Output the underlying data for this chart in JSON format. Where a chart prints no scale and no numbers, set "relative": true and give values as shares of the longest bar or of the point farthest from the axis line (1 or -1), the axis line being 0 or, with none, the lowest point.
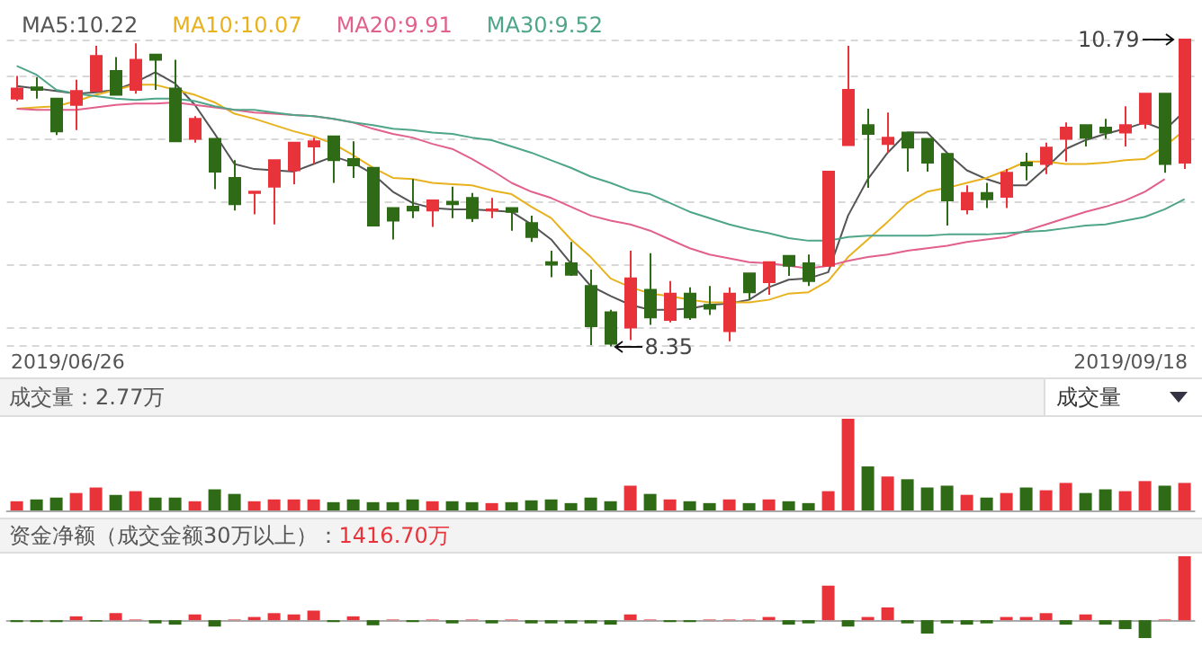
{
  "chart_data": [
    {
      "type": "candlestick",
      "categories": [
        null,
        null,
        null,
        null,
        null,
        null,
        null,
        null,
        null,
        null,
        null,
        null,
        null,
        null,
        null,
        null,
        null,
        null,
        null,
        null,
        null,
        null,
        null,
        null,
        null,
        null,
        null,
        null,
        null,
        null,
        null,
        null,
        null,
        null,
        null,
        null,
        null,
        null,
        null,
        null,
        null,
        null,
        null,
        null,
        null,
        null,
        null,
        null,
        null,
        null,
        null,
        null,
        null,
        null,
        null,
        null,
        null,
        null,
        null,
        null
      ],
      "ohlc": [
        [
          10.32,
          10.5,
          10.3,
          10.4
        ],
        [
          10.41,
          10.49,
          10.32,
          10.39
        ],
        [
          10.32,
          10.32,
          10.03,
          10.06
        ],
        [
          10.27,
          10.47,
          10.07,
          10.38
        ],
        [
          10.38,
          10.74,
          10.38,
          10.66
        ],
        [
          10.54,
          10.65,
          10.35,
          10.35
        ],
        [
          10.39,
          10.76,
          10.36,
          10.63
        ],
        [
          10.67,
          10.67,
          10.39,
          10.63
        ],
        [
          10.4,
          10.63,
          9.98,
          9.98
        ],
        [
          10.0,
          10.18,
          9.97,
          10.16
        ],
        [
          10.0,
          10.0,
          9.6,
          9.74
        ],
        [
          9.69,
          9.83,
          9.43,
          9.48
        ],
        [
          9.57,
          9.58,
          9.4,
          9.58
        ],
        [
          9.62,
          9.83,
          9.32,
          9.83
        ],
        [
          9.75,
          9.97,
          9.64,
          9.97
        ],
        [
          9.94,
          10.01,
          9.8,
          9.98
        ],
        [
          10.02,
          10.02,
          9.65,
          9.83
        ],
        [
          9.84,
          9.98,
          9.69,
          9.79
        ],
        [
          9.77,
          9.77,
          9.31,
          9.31
        ],
        [
          9.45,
          9.45,
          9.2,
          9.35
        ],
        [
          9.46,
          9.68,
          9.37,
          9.43
        ],
        [
          9.43,
          9.51,
          9.3,
          9.51
        ],
        [
          9.5,
          9.62,
          9.37,
          9.48
        ],
        [
          9.53,
          9.57,
          9.34,
          9.37
        ],
        [
          9.43,
          9.53,
          9.37,
          9.44
        ],
        [
          9.45,
          9.45,
          9.27,
          9.42
        ],
        [
          9.33,
          9.39,
          9.18,
          9.22
        ],
        [
          9.02,
          9.11,
          8.9,
          9.0
        ],
        [
          9.01,
          9.18,
          8.91,
          8.92
        ],
        [
          8.83,
          8.96,
          8.36,
          8.51
        ],
        [
          8.62,
          8.64,
          8.35,
          8.37
        ],
        [
          8.5,
          9.11,
          8.4,
          8.89
        ],
        [
          8.8,
          9.09,
          8.52,
          8.58
        ],
        [
          8.56,
          8.87,
          8.54,
          8.77
        ],
        [
          8.77,
          8.82,
          8.56,
          8.58
        ],
        [
          8.68,
          8.83,
          8.6,
          8.65
        ],
        [
          8.47,
          8.82,
          8.39,
          8.77
        ],
        [
          8.93,
          8.93,
          8.72,
          8.78
        ],
        [
          8.86,
          9.02,
          8.76,
          9.02
        ],
        [
          9.07,
          9.07,
          8.91,
          8.99
        ],
        [
          9.01,
          9.08,
          8.83,
          8.87
        ],
        [
          8.99,
          9.74,
          8.99,
          9.74
        ],
        [
          9.95,
          10.74,
          9.95,
          10.39
        ],
        [
          10.11,
          10.24,
          9.61,
          10.04
        ],
        [
          9.96,
          10.21,
          9.89,
          10.01
        ],
        [
          10.05,
          10.05,
          9.74,
          9.93
        ],
        [
          10.0,
          10.0,
          9.74,
          9.81
        ],
        [
          9.88,
          9.88,
          9.31,
          9.51
        ],
        [
          9.44,
          9.63,
          9.4,
          9.57
        ],
        [
          9.57,
          9.65,
          9.45,
          9.52
        ],
        [
          9.54,
          9.76,
          9.45,
          9.73
        ],
        [
          9.81,
          9.89,
          9.67,
          9.79
        ],
        [
          9.8,
          9.97,
          9.72,
          9.93
        ],
        [
          10.0,
          10.13,
          9.82,
          10.09
        ],
        [
          10.11,
          10.11,
          9.94,
          10.01
        ],
        [
          10.09,
          10.16,
          10.0,
          10.05
        ],
        [
          10.05,
          10.26,
          9.94,
          10.11
        ],
        [
          10.12,
          10.36,
          10.08,
          10.36
        ],
        [
          10.36,
          10.36,
          9.73,
          9.8
        ],
        [
          9.81,
          10.79,
          9.76,
          10.79
        ]
      ],
      "colors": [
        "#e8333a",
        "#2f6b17",
        "#2f6b17",
        "#e8333a",
        "#e8333a",
        "#2f6b17",
        "#e8333a",
        "#2f6b17",
        "#2f6b17",
        "#e8333a",
        "#2f6b17",
        "#2f6b17",
        "#e8333a",
        "#e8333a",
        "#e8333a",
        "#e8333a",
        "#2f6b17",
        "#2f6b17",
        "#2f6b17",
        "#2f6b17",
        "#2f6b17",
        "#e8333a",
        "#2f6b17",
        "#2f6b17",
        "#e8333a",
        "#2f6b17",
        "#2f6b17",
        "#2f6b17",
        "#2f6b17",
        "#2f6b17",
        "#2f6b17",
        "#e8333a",
        "#2f6b17",
        "#e8333a",
        "#2f6b17",
        "#2f6b17",
        "#e8333a",
        "#2f6b17",
        "#e8333a",
        "#2f6b17",
        "#2f6b17",
        "#e8333a",
        "#e8333a",
        "#2f6b17",
        "#e8333a",
        "#2f6b17",
        "#2f6b17",
        "#2f6b17",
        "#e8333a",
        "#2f6b17",
        "#e8333a",
        "#2f6b17",
        "#e8333a",
        "#e8333a",
        "#2f6b17",
        "#2f6b17",
        "#e8333a",
        "#e8333a",
        "#2f6b17",
        "#e8333a"
      ],
      "series": [
        {
          "type": "line",
          "name": "MA5:10.22",
          "color": "#555555",
          "values": [
            10.42,
            10.4,
            10.38,
            10.36,
            10.37,
            10.39,
            10.45,
            10.53,
            10.44,
            10.27,
            10.04,
            9.8,
            9.76,
            9.75,
            9.74,
            9.8,
            9.86,
            9.81,
            9.72,
            9.58,
            9.49,
            9.45,
            9.44,
            9.44,
            9.43,
            9.42,
            9.32,
            9.2,
            9.01,
            8.83,
            8.75,
            8.68,
            8.64,
            8.64,
            8.65,
            8.68,
            8.69,
            8.72,
            8.82,
            8.88,
            8.89,
            8.94,
            9.39,
            9.68,
            9.89,
            10.05,
            10.05,
            9.89,
            9.75,
            9.68,
            9.63,
            9.63,
            9.77,
            9.92,
            9.99,
            10.04,
            10.08,
            10.13,
            10.07,
            10.22
          ]
        },
        {
          "type": "line",
          "name": "MA10:10.07",
          "color": "#e8b21e",
          "values": [
            10.24,
            10.25,
            10.26,
            10.3,
            10.35,
            10.39,
            10.43,
            10.43,
            10.39,
            10.35,
            10.29,
            10.2,
            10.16,
            10.11,
            10.06,
            10.02,
            9.96,
            9.87,
            9.77,
            9.69,
            9.68,
            9.65,
            9.64,
            9.63,
            9.59,
            9.56,
            9.46,
            9.37,
            9.2,
            9.06,
            8.89,
            8.82,
            8.77,
            8.75,
            8.72,
            8.7,
            8.7,
            8.7,
            8.72,
            8.77,
            8.78,
            8.87,
            9.06,
            9.2,
            9.34,
            9.49,
            9.58,
            9.61,
            9.65,
            9.69,
            9.75,
            9.82,
            9.82,
            9.8,
            9.8,
            9.81,
            9.83,
            9.84,
            9.94,
            10.07
          ]
        },
        {
          "type": "line",
          "name": "MA20:9.91",
          "color": "#e2608c",
          "values": [
            10.24,
            10.23,
            10.23,
            10.23,
            10.25,
            10.27,
            10.28,
            10.28,
            10.29,
            10.27,
            10.25,
            10.23,
            10.21,
            10.2,
            10.19,
            10.18,
            10.16,
            10.13,
            10.08,
            10.04,
            10.01,
            9.96,
            9.92,
            9.84,
            9.75,
            9.65,
            9.58,
            9.53,
            9.46,
            9.39,
            9.35,
            9.32,
            9.27,
            9.2,
            9.13,
            9.08,
            9.05,
            9.02,
            9.01,
            8.99,
            8.97,
            8.99,
            9.03,
            9.06,
            9.08,
            9.11,
            9.13,
            9.15,
            9.18,
            9.2,
            9.22,
            9.27,
            9.32,
            9.37,
            9.42,
            9.46,
            9.51,
            9.58,
            9.68,
            null
          ]
        },
        {
          "type": "line",
          "name": "MA30:9.52",
          "color": "#4fa58a",
          "values": [
            10.58,
            10.51,
            10.39,
            10.36,
            10.34,
            10.32,
            10.31,
            10.32,
            10.32,
            10.3,
            10.26,
            10.23,
            10.23,
            10.21,
            10.19,
            10.18,
            10.16,
            10.13,
            10.11,
            10.08,
            10.07,
            10.05,
            10.04,
            10.01,
            9.99,
            9.94,
            9.89,
            9.83,
            9.77,
            9.7,
            9.65,
            9.59,
            9.56,
            9.49,
            9.42,
            9.37,
            9.32,
            9.28,
            9.25,
            9.21,
            9.19,
            9.19,
            9.22,
            9.23,
            9.23,
            9.23,
            9.23,
            9.24,
            9.24,
            9.24,
            9.25,
            9.26,
            9.27,
            9.29,
            9.31,
            9.32,
            9.35,
            9.38,
            9.44,
            9.52
          ]
        }
      ],
      "grid": "y",
      "tick_labels": false,
      "legend": "top left",
      "marker": "none",
      "line_style": "solid",
      "annotations": [
        "10.79",
        "8.35",
        "2019/06/26",
        "2019/09/18"
      ]
    },
    {
      "type": "bar",
      "title": "成交量：2.77万",
      "annotations": [
        "成交量"
      ],
      "relative": true,
      "categories": [
        null,
        null,
        null,
        null,
        null,
        null,
        null,
        null,
        null,
        null,
        null,
        null,
        null,
        null,
        null,
        null,
        null,
        null,
        null,
        null,
        null,
        null,
        null,
        null,
        null,
        null,
        null,
        null,
        null,
        null,
        null,
        null,
        null,
        null,
        null,
        null,
        null,
        null,
        null,
        null,
        null,
        null,
        null,
        null,
        null,
        null,
        null,
        null,
        null,
        null,
        null,
        null,
        null,
        null,
        null,
        null,
        null,
        null,
        null,
        null
      ],
      "values": [
        0.1,
        0.12,
        0.14,
        0.19,
        0.25,
        0.17,
        0.21,
        0.14,
        0.14,
        0.1,
        0.23,
        0.18,
        0.1,
        0.12,
        0.12,
        0.12,
        0.09,
        0.12,
        0.09,
        0.09,
        0.12,
        0.1,
        0.1,
        0.09,
        0.08,
        0.09,
        0.11,
        0.12,
        0.08,
        0.14,
        0.1,
        0.27,
        0.18,
        0.12,
        0.1,
        0.08,
        0.12,
        0.08,
        0.12,
        0.1,
        0.08,
        0.21,
        1,
        0.48,
        0.37,
        0.34,
        0.25,
        0.27,
        0.17,
        0.14,
        0.19,
        0.25,
        0.22,
        0.3,
        0.19,
        0.23,
        0.21,
        0.32,
        0.27,
        0.3
      ],
      "colors": [
        "#e8333a",
        "#2f6b17",
        "#2f6b17",
        "#e8333a",
        "#e8333a",
        "#2f6b17",
        "#e8333a",
        "#2f6b17",
        "#2f6b17",
        "#e8333a",
        "#2f6b17",
        "#2f6b17",
        "#e8333a",
        "#e8333a",
        "#e8333a",
        "#e8333a",
        "#2f6b17",
        "#2f6b17",
        "#2f6b17",
        "#2f6b17",
        "#2f6b17",
        "#e8333a",
        "#2f6b17",
        "#2f6b17",
        "#e8333a",
        "#2f6b17",
        "#2f6b17",
        "#2f6b17",
        "#2f6b17",
        "#2f6b17",
        "#2f6b17",
        "#e8333a",
        "#2f6b17",
        "#e8333a",
        "#2f6b17",
        "#2f6b17",
        "#e8333a",
        "#2f6b17",
        "#e8333a",
        "#2f6b17",
        "#2f6b17",
        "#e8333a",
        "#e8333a",
        "#2f6b17",
        "#e8333a",
        "#2f6b17",
        "#2f6b17",
        "#2f6b17",
        "#e8333a",
        "#2f6b17",
        "#e8333a",
        "#2f6b17",
        "#e8333a",
        "#e8333a",
        "#2f6b17",
        "#2f6b17",
        "#e8333a",
        "#e8333a",
        "#2f6b17",
        "#e8333a"
      ]
    },
    {
      "type": "bar",
      "title": "资金净额（成交金额30万以上）：",
      "subtitle": "1416.70万",
      "relative": true,
      "categories": [
        null,
        null,
        null,
        null,
        null,
        null,
        null,
        null,
        null,
        null,
        null,
        null,
        null,
        null,
        null,
        null,
        null,
        null,
        null,
        null,
        null,
        null,
        null,
        null,
        null,
        null,
        null,
        null,
        null,
        null,
        null,
        null,
        null,
        null,
        null,
        null,
        null,
        null,
        null,
        null,
        null,
        null,
        null,
        null,
        null,
        null,
        null,
        null,
        null,
        null,
        null,
        null,
        null,
        null,
        null,
        null,
        null,
        null,
        null,
        null
      ],
      "values": [
        -0.03,
        -0.03,
        -0.03,
        0.06,
        -0.02,
        0.11,
        0.01,
        -0.05,
        -0.07,
        0.09,
        -0.1,
        0.01,
        0.05,
        0.11,
        0.09,
        0.15,
        -0.03,
        0.06,
        -0.08,
        0.01,
        -0.03,
        0.01,
        -0.05,
        0.01,
        -0.05,
        0.01,
        -0.05,
        -0.05,
        -0.05,
        -0.05,
        -0.07,
        0.09,
        0.01,
        -0.03,
        -0.03,
        0.01,
        0.01,
        0.01,
        0.05,
        -0.07,
        -0.05,
        0.54,
        -0.1,
        0.05,
        0.2,
        -0.05,
        -0.21,
        -0.05,
        -0.07,
        -0.05,
        0.05,
        0.05,
        0.11,
        -0.07,
        0.09,
        -0.07,
        -0.14,
        -0.28,
        0.01,
        1
      ],
      "colors": [
        "#2f6b17",
        "#2f6b17",
        "#2f6b17",
        "#e8333a",
        "#2f6b17",
        "#e8333a",
        "#e8333a",
        "#2f6b17",
        "#2f6b17",
        "#e8333a",
        "#2f6b17",
        "#e8333a",
        "#e8333a",
        "#e8333a",
        "#e8333a",
        "#e8333a",
        "#2f6b17",
        "#e8333a",
        "#2f6b17",
        "#e8333a",
        "#2f6b17",
        "#e8333a",
        "#2f6b17",
        "#e8333a",
        "#2f6b17",
        "#e8333a",
        "#2f6b17",
        "#2f6b17",
        "#2f6b17",
        "#2f6b17",
        "#2f6b17",
        "#e8333a",
        "#e8333a",
        "#2f6b17",
        "#2f6b17",
        "#e8333a",
        "#e8333a",
        "#e8333a",
        "#e8333a",
        "#2f6b17",
        "#2f6b17",
        "#e8333a",
        "#2f6b17",
        "#e8333a",
        "#e8333a",
        "#2f6b17",
        "#2f6b17",
        "#2f6b17",
        "#2f6b17",
        "#2f6b17",
        "#e8333a",
        "#e8333a",
        "#e8333a",
        "#2f6b17",
        "#e8333a",
        "#2f6b17",
        "#2f6b17",
        "#2f6b17",
        "#e8333a",
        "#e8333a"
      ]
    }
  ]
}
